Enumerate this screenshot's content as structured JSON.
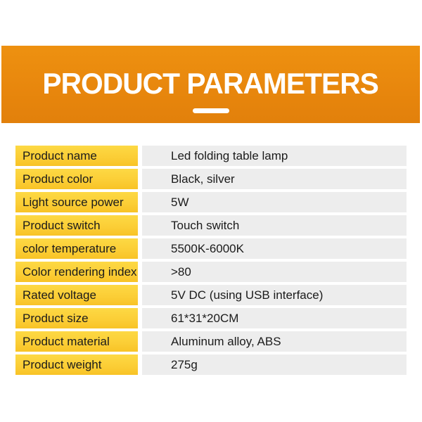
{
  "header": {
    "title": "PRODUCT PARAMETERS"
  },
  "table": {
    "rows": [
      {
        "label": "Product name",
        "value": "Led folding table lamp"
      },
      {
        "label": "Product color",
        "value": "Black, silver"
      },
      {
        "label": "Light source power",
        "value": "5W"
      },
      {
        "label": "Product switch",
        "value": "Touch switch"
      },
      {
        "label": "color temperature",
        "value": "5500K-6000K"
      },
      {
        "label": "Color rendering index",
        "value": ">80"
      },
      {
        "label": "Rated voltage",
        "value": "5V DC (using USB interface)"
      },
      {
        "label": "Product size",
        "value": "61*31*20CM"
      },
      {
        "label": "Product material",
        "value": "Aluminum alloy, ABS"
      },
      {
        "label": "Product weight",
        "value": "275g"
      }
    ]
  },
  "colors": {
    "banner_orange": "#E8870D",
    "label_yellow_top": "#FDD944",
    "label_yellow_bottom": "#F8C326",
    "value_gray": "#EDEDED",
    "text_dark": "#1B1B1B",
    "title_white": "#FFFFFF"
  }
}
